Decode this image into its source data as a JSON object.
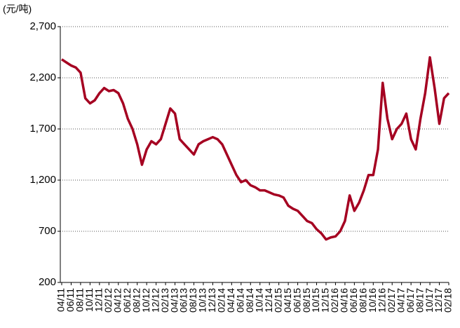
{
  "chart_data": {
    "type": "line",
    "unit_label": "(元/吨)",
    "categories": [
      "04/11",
      null,
      "06/11",
      null,
      "08/11",
      null,
      "10/11",
      null,
      "12/11",
      null,
      "02/12",
      null,
      "04/12",
      null,
      "06/12",
      null,
      "08/12",
      null,
      "10/12",
      null,
      "12/12",
      null,
      "02/13",
      null,
      "04/13",
      null,
      "06/13",
      null,
      "08/13",
      null,
      "10/13",
      null,
      "12/13",
      null,
      "02/14",
      null,
      "04/14",
      null,
      "06/14",
      null,
      "08/14",
      null,
      "10/14",
      null,
      "12/14",
      null,
      "02/15",
      null,
      "04/15",
      null,
      "06/15",
      null,
      "08/15",
      null,
      "10/15",
      null,
      "12/15",
      null,
      "02/16",
      null,
      "04/16",
      null,
      "06/16",
      null,
      "08/16",
      null,
      "10/16",
      null,
      "12/16",
      null,
      "02/17",
      null,
      "04/17",
      null,
      "06/17",
      null,
      "08/17",
      null,
      "10/17",
      null,
      "12/17",
      null,
      "02/18"
    ],
    "values": [
      2380,
      2350,
      2320,
      2300,
      2250,
      2000,
      1950,
      1980,
      2050,
      2100,
      2070,
      2080,
      2050,
      1950,
      1800,
      1700,
      1550,
      1350,
      1500,
      1580,
      1550,
      1600,
      1750,
      1900,
      1850,
      1600,
      1550,
      1500,
      1450,
      1550,
      1580,
      1600,
      1620,
      1600,
      1550,
      1450,
      1350,
      1250,
      1180,
      1200,
      1150,
      1130,
      1100,
      1100,
      1080,
      1060,
      1050,
      1030,
      950,
      920,
      900,
      850,
      800,
      780,
      720,
      680,
      620,
      640,
      650,
      700,
      800,
      1050,
      900,
      980,
      1100,
      1250,
      1250,
      1500,
      2150,
      1800,
      1600,
      1700,
      1750,
      1850,
      1600,
      1500,
      1800,
      2050,
      2400,
      2100,
      1750,
      2000,
      2050
    ],
    "color": "#a50021",
    "ylim": [
      200,
      2700
    ],
    "yticks": [
      {
        "value": 200,
        "label": "200"
      },
      {
        "value": 700,
        "label": "700"
      },
      {
        "value": 1200,
        "label": "1,200"
      },
      {
        "value": 1700,
        "label": "1,700"
      },
      {
        "value": 2200,
        "label": "2,200"
      },
      {
        "value": 2700,
        "label": "2,700"
      }
    ],
    "grid": true
  }
}
